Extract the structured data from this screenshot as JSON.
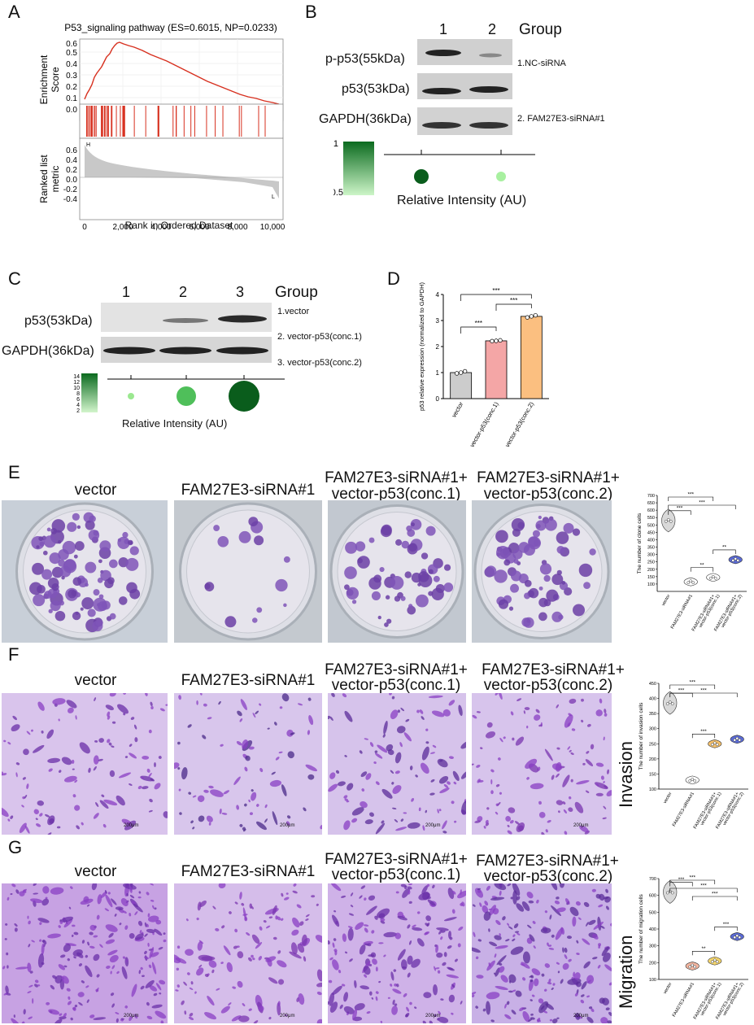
{
  "panels": {
    "A": {
      "letter": "A",
      "title": "P53_signaling pathway (ES=0.6015, NP=0.0233)",
      "es_ylabel_1": "Enrichment",
      "es_ylabel_2": "Score",
      "es_ticks": [
        "0.6",
        "0.5",
        "0.4",
        "0.3",
        "0.2",
        "0.1",
        "0.0"
      ],
      "rank_ylabel_1": "Ranked list",
      "rank_ylabel_2": "metric",
      "rank_ticks": [
        "0.6",
        "0.4",
        "0.2",
        "0.0",
        "-0.2",
        "-0.4"
      ],
      "x_ticks": [
        "0",
        "2,000",
        "4,000",
        "6,000",
        "8,000",
        "10,000"
      ],
      "xlabel": "Rank in Ordered Dataset",
      "marker_h": "H",
      "marker_l": "L",
      "line_color": "#d7301f"
    },
    "B": {
      "letter": "B",
      "lanes": [
        "1",
        "2"
      ],
      "group_label": "Group",
      "rows": [
        "p-p53(55kDa)",
        "p53(53kDa)",
        "GAPDH(36kDa)"
      ],
      "note_1": "1.NC-siRNA",
      "note_2": "2. FAM27E3-siRNA#1",
      "scale_max": "1",
      "scale_min": "0.5",
      "axis_label": "Relative Intensity (AU)"
    },
    "C": {
      "letter": "C",
      "lanes": [
        "1",
        "2",
        "3"
      ],
      "group_label": "Group",
      "rows": [
        "p53(53kDa)",
        "GAPDH(36kDa)"
      ],
      "note_1": "1.vector",
      "note_2": "2. vector-p53(conc.1)",
      "note_3": "3. vector-p53(conc.2)",
      "scale_ticks": [
        "14",
        "12",
        "10",
        "8",
        "6",
        "4",
        "2"
      ],
      "axis_label": "Relative Intensity (AU)"
    },
    "D": {
      "letter": "D"
    },
    "E": {
      "letter": "E"
    },
    "F": {
      "letter": "F",
      "side_label": "Invasion"
    },
    "G": {
      "letter": "G",
      "side_label": "Migration"
    }
  },
  "image_labels": {
    "vector": "vector",
    "sirna": "FAM27E3-siRNA#1",
    "c1_line1": "FAM27E3-siRNA#1+",
    "c1_line2": "vector-p53(conc.1)",
    "c2_line1": "FAM27E3-siRNA#1+",
    "c2_line2": "vector-p53(conc.2)"
  },
  "scale_bar": "200μm",
  "chart_data": [
    {
      "id": "D",
      "type": "bar",
      "ylabel": "p53 relative expression (normalized to GAPDH)",
      "categories": [
        "vector",
        "vector-p53(conc.1)",
        "vector-p53(conc.2)"
      ],
      "values": [
        1.0,
        2.22,
        3.16
      ],
      "points": [
        [
          0.97,
          1.0,
          1.05
        ],
        [
          2.21,
          2.22,
          2.24
        ],
        [
          3.12,
          3.16,
          3.2
        ]
      ],
      "colors": [
        "#cccccc",
        "#f4a6a6",
        "#fbbf80"
      ],
      "ylim": [
        0,
        4
      ],
      "yticks": [
        0,
        1,
        2,
        3,
        4
      ],
      "significance": [
        {
          "from": 0,
          "to": 1,
          "label": "***"
        },
        {
          "from": 1,
          "to": 2,
          "label": "***"
        },
        {
          "from": 0,
          "to": 2,
          "label": "***"
        }
      ]
    },
    {
      "id": "E",
      "type": "violin",
      "ylabel": "The number of clone cells",
      "categories": [
        "vector",
        "FAM27E3-siRNA#1",
        "FAM27E3-siRNA#1+ vector-p53(conc.1)",
        "FAM27E3-siRNA#1+ vector-p53(conc.2)"
      ],
      "values": [
        530,
        115,
        145,
        265
      ],
      "colors": [
        "#d9d9d9",
        "#ffffff",
        "#ffffff",
        "#5b6bd6"
      ],
      "ylim": [
        50,
        700
      ],
      "yticks": [
        100,
        150,
        200,
        250,
        300,
        350,
        400,
        450,
        500,
        550,
        600,
        650,
        700
      ],
      "significance": [
        {
          "from": 0,
          "to": 1,
          "label": "***"
        },
        {
          "from": 1,
          "to": 2,
          "label": "**"
        },
        {
          "from": 2,
          "to": 3,
          "label": "**"
        },
        {
          "from": 0,
          "to": 2,
          "label": "***"
        },
        {
          "from": 0,
          "to": 3,
          "label": "***"
        }
      ]
    },
    {
      "id": "F",
      "type": "violin",
      "ylabel": "The number of invasion cells",
      "categories": [
        "vector",
        "FAM27E3-siRNA#1",
        "FAM27E3-siRNA#1+ vector-p53(conc.1)",
        "FAM27E3-siRNA#1+ vector-p53(conc.2)"
      ],
      "values": [
        385,
        130,
        250,
        265
      ],
      "colors": [
        "#d9d9d9",
        "#ffffff",
        "#f5c16c",
        "#5b6bd6"
      ],
      "ylim": [
        100,
        450
      ],
      "yticks": [
        100,
        150,
        200,
        250,
        300,
        350,
        400,
        450
      ],
      "significance": [
        {
          "from": 0,
          "to": 1,
          "label": "***"
        },
        {
          "from": 1,
          "to": 2,
          "label": "***"
        },
        {
          "from": 0,
          "to": 2,
          "label": "***"
        },
        {
          "from": 0,
          "to": 3,
          "label": "***"
        }
      ]
    },
    {
      "id": "G",
      "type": "violin",
      "ylabel": "The number of migration cells",
      "categories": [
        "vector",
        "FAM27E3-siRNA#1",
        "FAM27E3-siRNA#1+ vector-p53(conc.1)",
        "FAM27E3-siRNA#1+ vector-p53(conc.2)"
      ],
      "values": [
        620,
        180,
        210,
        355
      ],
      "colors": [
        "#d9d9d9",
        "#f4b6a0",
        "#f5d66c",
        "#5b6bd6"
      ],
      "ylim": [
        100,
        700
      ],
      "yticks": [
        100,
        200,
        300,
        400,
        500,
        600,
        700
      ],
      "significance": [
        {
          "from": 0,
          "to": 1,
          "label": "***"
        },
        {
          "from": 1,
          "to": 2,
          "label": "**"
        },
        {
          "from": 2,
          "to": 3,
          "label": "***"
        },
        {
          "from": 0,
          "to": 2,
          "label": "***"
        },
        {
          "from": 0,
          "to": 3,
          "label": "***"
        },
        {
          "from": 1,
          "to": 3,
          "label": "***"
        }
      ]
    }
  ]
}
